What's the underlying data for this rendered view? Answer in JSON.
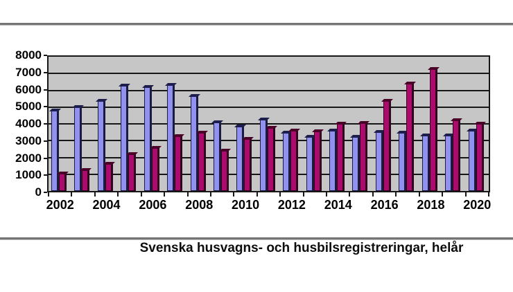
{
  "chart_data": {
    "type": "bar",
    "title": "Svenska husvagns- och husbilsregistreringar, helår",
    "categories": [
      "2002",
      "2003",
      "2004",
      "2005",
      "2006",
      "2007",
      "2008",
      "2009",
      "2010",
      "2011",
      "2012",
      "2013",
      "2014",
      "2015",
      "2016",
      "2017",
      "2018",
      "2019",
      "2020"
    ],
    "x_tick_labels": [
      "2002",
      "2004",
      "2006",
      "2008",
      "2010",
      "2012",
      "2014",
      "2016",
      "2018",
      "2020"
    ],
    "series": [
      {
        "name": "series-blue",
        "color": "#9191f0",
        "edge_color": "#1b1b40",
        "cap_color": "#1e1e4c",
        "values": [
          4800,
          5000,
          5350,
          6250,
          6200,
          6300,
          5650,
          4100,
          3850,
          4250,
          3450,
          3200,
          3600,
          3200,
          3500,
          3450,
          3300,
          3300,
          3600
        ]
      },
      {
        "name": "series-magenta",
        "color": "#ad0a6d",
        "edge_color": "#2f041c",
        "cap_color": "#4a0128",
        "values": [
          1050,
          1250,
          1600,
          2200,
          2550,
          3250,
          3450,
          2400,
          3100,
          3750,
          3600,
          3550,
          4000,
          4050,
          5350,
          6400,
          7250,
          4200,
          4000
        ]
      }
    ],
    "ylim": [
      0,
      8000
    ],
    "y_tick_interval": 1000,
    "y_tick_labels": [
      "0",
      "1000",
      "2000",
      "3000",
      "4000",
      "5000",
      "6000",
      "7000",
      "8000"
    ],
    "grid": true,
    "legend_position": "none",
    "plot_background": "#c6c6c6",
    "gridline_color": "#161616"
  }
}
